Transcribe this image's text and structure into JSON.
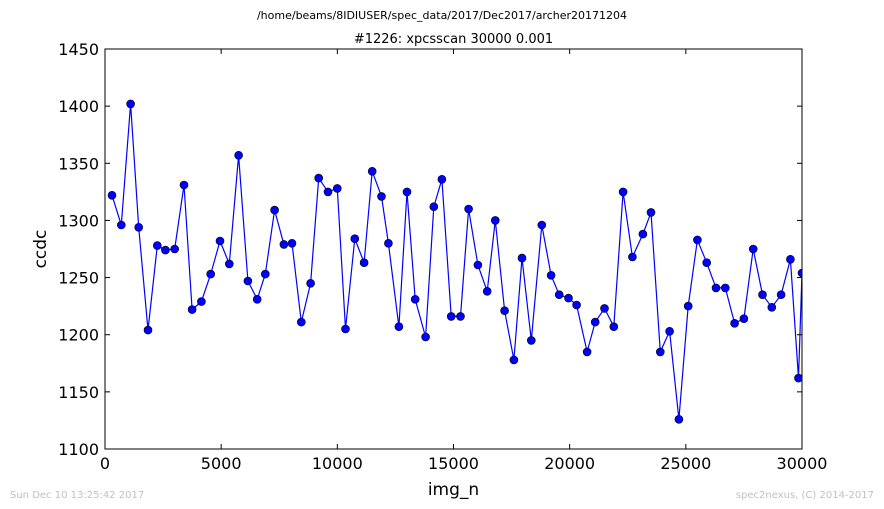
{
  "suptitle": "/home/beams/8IDIUSER/spec_data/2017/Dec2017/archer20171204",
  "footer": {
    "timestamp": "Sun Dec 10 13:25:42 2017",
    "credit": "spec2nexus, (C) 2014-2017"
  },
  "colors": {
    "line": "#0000ff",
    "marker": "#0000ff"
  },
  "chart_data": {
    "type": "line",
    "title": "#1226: xpcsscan 30000 0.001",
    "xlabel": "img_n",
    "ylabel": "ccdc",
    "xlim": [
      0,
      30000
    ],
    "ylim": [
      1100,
      1450
    ],
    "xticks": [
      0,
      5000,
      10000,
      15000,
      20000,
      25000,
      30000
    ],
    "yticks": [
      1100,
      1150,
      1200,
      1250,
      1300,
      1350,
      1400,
      1450
    ],
    "grid": false,
    "series": [
      {
        "x": [
          300,
          700,
          1100,
          1450,
          1850,
          2250,
          2600,
          3000,
          3400,
          3750,
          4150,
          4550,
          4950,
          5350,
          5750,
          6150,
          6550,
          6900,
          7300,
          7700,
          8050,
          8450,
          8850,
          9200,
          9600,
          10000,
          10350,
          10750,
          11150,
          11500,
          11900,
          12200,
          12650,
          13000,
          13350,
          13800,
          14150,
          14500,
          14900,
          15300,
          15650,
          16050,
          16450,
          16800,
          17200,
          17600,
          17950,
          18350,
          18800,
          19200,
          19550,
          19950,
          20300,
          20750,
          21100,
          21500,
          21900,
          22300,
          22700,
          23150,
          23500,
          23900,
          24300,
          24700,
          25100,
          25500,
          25900,
          26300,
          26700,
          27100,
          27500,
          27900,
          28300,
          28700,
          29100,
          29500,
          29850,
          30000
        ],
        "y": [
          1322,
          1296,
          1402,
          1294,
          1204,
          1278,
          1274,
          1275,
          1331,
          1222,
          1229,
          1253,
          1282,
          1262,
          1357,
          1247,
          1231,
          1253,
          1309,
          1279,
          1280,
          1211,
          1245,
          1337,
          1325,
          1328,
          1205,
          1284,
          1263,
          1343,
          1321,
          1280,
          1207,
          1325,
          1231,
          1198,
          1312,
          1336,
          1216,
          1216,
          1310,
          1261,
          1238,
          1300,
          1221,
          1178,
          1267,
          1195,
          1296,
          1252,
          1235,
          1232,
          1226,
          1185,
          1211,
          1223,
          1207,
          1325,
          1268,
          1288,
          1307,
          1185,
          1203,
          1126,
          1225,
          1283,
          1263,
          1241,
          1241,
          1210,
          1214,
          1275,
          1235,
          1224,
          1235,
          1266,
          1162,
          1254
        ]
      }
    ]
  }
}
